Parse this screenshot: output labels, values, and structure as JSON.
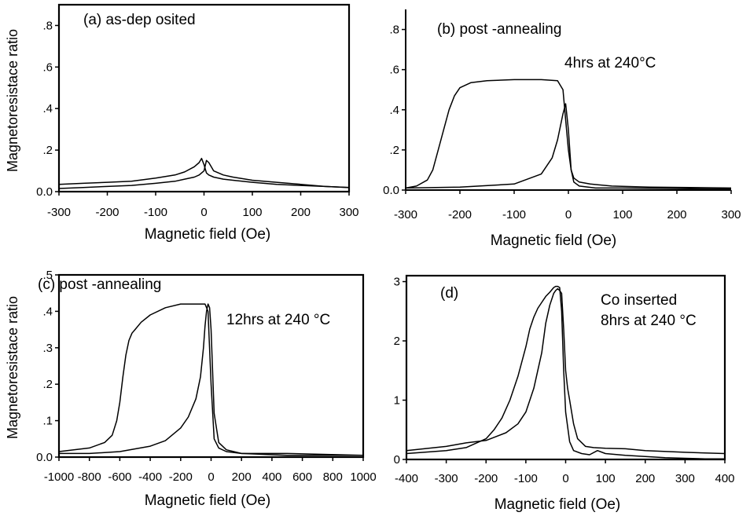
{
  "chart_data": [
    {
      "id": "a",
      "type": "line",
      "annotations": [
        "(a) as-dep osited"
      ],
      "xlabel": "Magnetic field   (Oe)",
      "ylabel": "Magnetoresistace  ratio",
      "xlim": [
        -300,
        300
      ],
      "ylim": [
        0,
        0.9
      ],
      "frame": "box",
      "x_ticks": [
        -300,
        -200,
        -100,
        0,
        100,
        200,
        300
      ],
      "x_tick_labels": [
        "-300",
        "-200",
        "-100",
        "0",
        "100",
        "200",
        "300"
      ],
      "y_ticks": [
        0,
        0.2,
        0.4,
        0.6,
        0.8
      ],
      "y_tick_labels": [
        "0.0",
        ".2",
        ".4",
        ".6",
        ".8"
      ],
      "series": [
        {
          "x": [
            -300,
            -250,
            -200,
            -150,
            -100,
            -60,
            -40,
            -20,
            -10,
            -5,
            0,
            5,
            10,
            20,
            40,
            60,
            100,
            150,
            200,
            250,
            300
          ],
          "y": [
            0.035,
            0.04,
            0.045,
            0.05,
            0.065,
            0.08,
            0.095,
            0.12,
            0.14,
            0.16,
            0.13,
            0.09,
            0.08,
            0.07,
            0.06,
            0.055,
            0.045,
            0.035,
            0.03,
            0.025,
            0.02
          ]
        },
        {
          "x": [
            -300,
            -250,
            -200,
            -150,
            -100,
            -60,
            -40,
            -20,
            -10,
            0,
            5,
            10,
            15,
            20,
            40,
            60,
            100,
            150,
            200,
            250,
            300
          ],
          "y": [
            0.015,
            0.02,
            0.025,
            0.03,
            0.04,
            0.05,
            0.06,
            0.07,
            0.08,
            0.1,
            0.15,
            0.14,
            0.12,
            0.1,
            0.08,
            0.07,
            0.055,
            0.045,
            0.035,
            0.025,
            0.02
          ]
        }
      ]
    },
    {
      "id": "b",
      "type": "line",
      "annotations": [
        "(b) post -annealing",
        "4hrs at 240°C"
      ],
      "xlabel": "Magnetic field   (Oe)",
      "ylabel": "",
      "xlim": [
        -300,
        300
      ],
      "ylim": [
        0,
        0.9
      ],
      "frame": "open",
      "x_ticks": [
        -300,
        -200,
        -100,
        0,
        100,
        200,
        300
      ],
      "x_tick_labels": [
        "-300",
        "-200",
        "-100",
        "0",
        "100",
        "200",
        "300"
      ],
      "y_ticks": [
        0,
        0.2,
        0.4,
        0.6,
        0.8
      ],
      "y_tick_labels": [
        "0.0",
        ".2",
        ".4",
        ".6",
        ".8"
      ],
      "series": [
        {
          "x": [
            -300,
            -280,
            -260,
            -250,
            -240,
            -230,
            -220,
            -210,
            -200,
            -180,
            -150,
            -100,
            -50,
            -20,
            -10,
            -5,
            0,
            5,
            10,
            20,
            40,
            80,
            150,
            300
          ],
          "y": [
            0.01,
            0.02,
            0.05,
            0.1,
            0.2,
            0.3,
            0.4,
            0.47,
            0.51,
            0.535,
            0.545,
            0.55,
            0.55,
            0.545,
            0.5,
            0.35,
            0.2,
            0.1,
            0.06,
            0.04,
            0.03,
            0.02,
            0.015,
            0.01
          ]
        },
        {
          "x": [
            -300,
            -200,
            -100,
            -50,
            -30,
            -20,
            -10,
            -5,
            0,
            5,
            10,
            20,
            50,
            100,
            300
          ],
          "y": [
            0.01,
            0.015,
            0.03,
            0.08,
            0.16,
            0.25,
            0.38,
            0.43,
            0.3,
            0.1,
            0.04,
            0.02,
            0.01,
            0.01,
            0.005
          ]
        }
      ]
    },
    {
      "id": "c",
      "type": "line",
      "annotations": [
        "(c) post -annealing",
        "12hrs at 240 °C"
      ],
      "xlabel": "Magnetic field   (Oe)",
      "ylabel": "Magnetoresistace  ratio",
      "xlim": [
        -1000,
        1000
      ],
      "ylim": [
        0,
        0.5
      ],
      "frame": "box",
      "x_ticks": [
        -1000,
        -800,
        -600,
        -400,
        -200,
        0,
        200,
        400,
        600,
        800,
        1000
      ],
      "x_tick_labels": [
        "-1000",
        "-800",
        "-600",
        "-400",
        "-200",
        "0",
        "200",
        "400",
        "600",
        "800",
        "1000"
      ],
      "y_ticks": [
        0,
        0.1,
        0.2,
        0.3,
        0.4,
        0.5
      ],
      "y_tick_labels": [
        "0.0",
        ".1",
        ".2",
        ".3",
        ".4",
        ".5"
      ],
      "series": [
        {
          "x": [
            -1000,
            -800,
            -700,
            -650,
            -620,
            -600,
            -580,
            -560,
            -540,
            -520,
            -500,
            -460,
            -400,
            -300,
            -200,
            -100,
            -60,
            -40,
            -20,
            0,
            20,
            50,
            100,
            200,
            500,
            1000
          ],
          "y": [
            0.015,
            0.025,
            0.04,
            0.06,
            0.1,
            0.15,
            0.22,
            0.28,
            0.32,
            0.34,
            0.35,
            0.37,
            0.39,
            0.41,
            0.42,
            0.42,
            0.42,
            0.42,
            0.4,
            0.2,
            0.05,
            0.025,
            0.015,
            0.01,
            0.005,
            0.005
          ]
        },
        {
          "x": [
            -1000,
            -800,
            -600,
            -400,
            -300,
            -200,
            -150,
            -100,
            -70,
            -50,
            -40,
            -30,
            -20,
            -10,
            0,
            20,
            50,
            100,
            200,
            500,
            1000
          ],
          "y": [
            0.01,
            0.01,
            0.015,
            0.03,
            0.045,
            0.08,
            0.11,
            0.16,
            0.22,
            0.3,
            0.36,
            0.4,
            0.42,
            0.41,
            0.35,
            0.12,
            0.04,
            0.02,
            0.01,
            0.01,
            0.005
          ]
        }
      ]
    },
    {
      "id": "d",
      "type": "line",
      "annotations": [
        "(d)",
        "Co inserted",
        "8hrs at 240 °C"
      ],
      "xlabel": "Magnetic field   (Oe)",
      "ylabel": "",
      "xlim": [
        -400,
        400
      ],
      "ylim": [
        0,
        3.1
      ],
      "frame": "box",
      "x_ticks": [
        -400,
        -300,
        -200,
        -100,
        0,
        100,
        200,
        300,
        400
      ],
      "x_tick_labels": [
        "-400",
        "-300",
        "-200",
        "-100",
        "0",
        "100",
        "200",
        "300",
        "400"
      ],
      "y_ticks": [
        0,
        1,
        2,
        3
      ],
      "y_tick_labels": [
        "0",
        "1",
        "2",
        "3"
      ],
      "series": [
        {
          "x": [
            -400,
            -300,
            -250,
            -200,
            -180,
            -160,
            -140,
            -120,
            -100,
            -90,
            -80,
            -70,
            -60,
            -50,
            -40,
            -30,
            -25,
            -20,
            -15,
            -10,
            -5,
            0,
            10,
            20,
            40,
            60,
            80,
            100,
            150,
            200,
            250,
            300,
            350,
            400
          ],
          "y": [
            0.1,
            0.15,
            0.2,
            0.35,
            0.5,
            0.7,
            1.0,
            1.4,
            1.9,
            2.2,
            2.4,
            2.55,
            2.65,
            2.75,
            2.82,
            2.9,
            2.92,
            2.92,
            2.9,
            2.5,
            1.5,
            0.8,
            0.3,
            0.15,
            0.1,
            0.08,
            0.15,
            0.1,
            0.07,
            0.05,
            0.03,
            0.02,
            0.01,
            0.01
          ]
        },
        {
          "x": [
            -400,
            -300,
            -250,
            -200,
            -150,
            -120,
            -100,
            -80,
            -60,
            -50,
            -40,
            -30,
            -25,
            -20,
            -15,
            -10,
            -5,
            0,
            5,
            10,
            20,
            30,
            50,
            70,
            100,
            150,
            200,
            300,
            400
          ],
          "y": [
            0.15,
            0.22,
            0.28,
            0.32,
            0.45,
            0.6,
            0.8,
            1.2,
            1.8,
            2.3,
            2.6,
            2.8,
            2.85,
            2.88,
            2.85,
            2.8,
            2.2,
            1.5,
            1.2,
            1.0,
            0.6,
            0.35,
            0.22,
            0.2,
            0.19,
            0.18,
            0.15,
            0.12,
            0.1
          ]
        }
      ]
    }
  ]
}
